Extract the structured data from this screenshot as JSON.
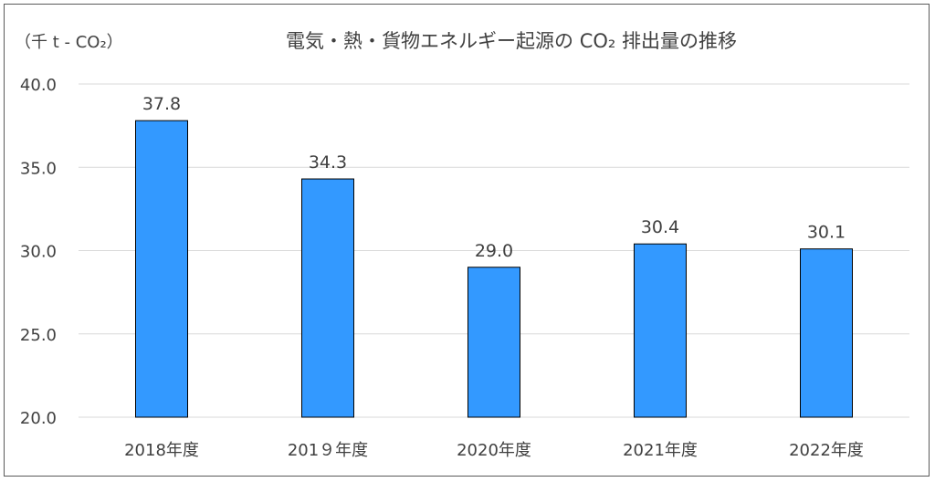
{
  "chart_data": {
    "type": "bar",
    "title": "電気・熱・貨物エネルギー起源の CO₂ 排出量の推移",
    "ylabel": "（千 t - CO₂）",
    "xlabel": "",
    "categories": [
      "2018年度",
      "201９年度",
      "2020年度",
      "2021年度",
      "2022年度"
    ],
    "values": [
      37.8,
      34.3,
      29.0,
      30.4,
      30.1
    ],
    "value_labels": [
      "37.8",
      "34.3",
      "29.0",
      "30.4",
      "30.1"
    ],
    "ylim": [
      20.0,
      40.0
    ],
    "yticks": [
      "20.0",
      "25.0",
      "30.0",
      "35.0",
      "40.0"
    ],
    "ytick_values": [
      20,
      25,
      30,
      35,
      40
    ],
    "grid": true,
    "bar_color": "#3399ff",
    "bar_edge_color": "#000000",
    "grid_color": "#d9d9d9"
  }
}
